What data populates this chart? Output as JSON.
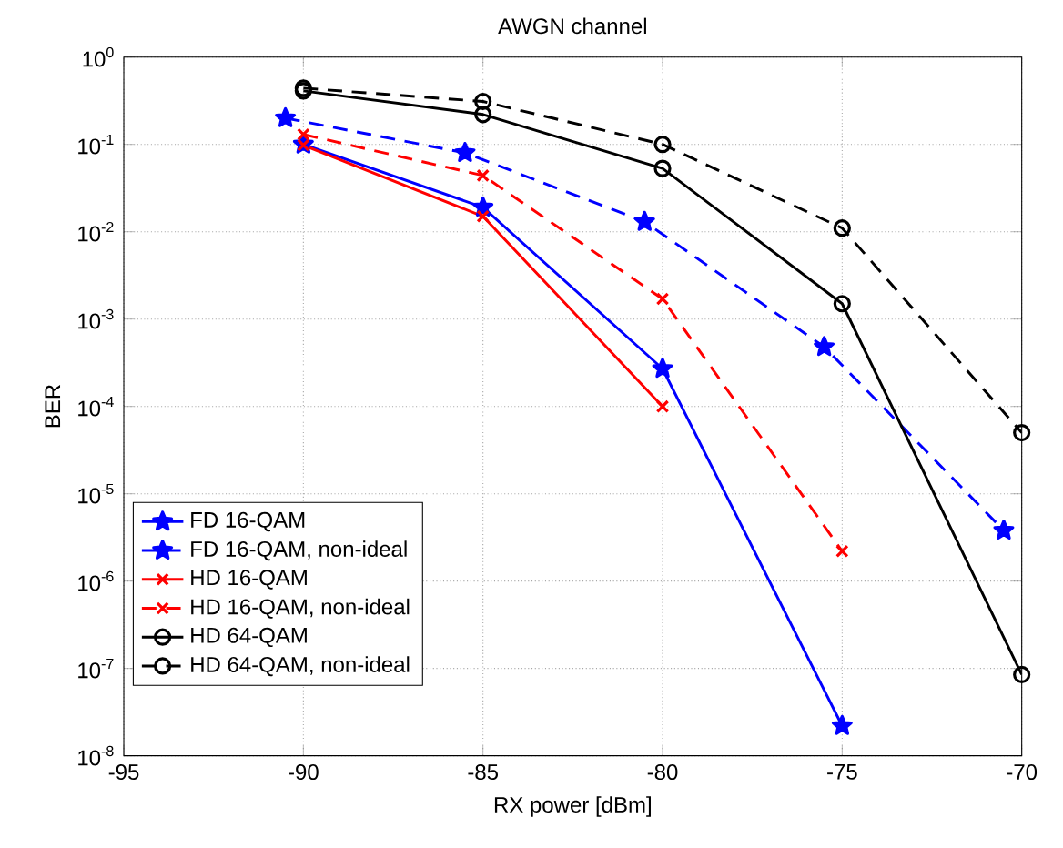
{
  "chart_data": {
    "type": "line",
    "title": "AWGN channel",
    "xlabel": "RX power [dBm]",
    "ylabel": "BER",
    "log": "y",
    "grid": true,
    "legend": "bottom left",
    "xlim": [
      -95,
      -70
    ],
    "xticks": [
      -95,
      -90,
      -85,
      -80,
      -75,
      -70
    ],
    "ylim": [
      1e-08,
      1
    ],
    "yticks": [
      {
        "value": 1e-08,
        "label": "10$^{-8}$"
      },
      {
        "value": 1e-07,
        "label": "10$^{-7}$"
      },
      {
        "value": 1e-06,
        "label": "10$^{-6}$"
      },
      {
        "value": 1e-05,
        "label": "10$^{-5}$"
      },
      {
        "value": 0.0001,
        "label": "10$^{-4}$"
      },
      {
        "value": 0.001,
        "label": "10$^{-3}$"
      },
      {
        "value": 0.01,
        "label": "10$^{-2}$"
      },
      {
        "value": 0.1,
        "label": "10$^{-1}$"
      },
      {
        "value": 1,
        "label": "10$^{0}$"
      }
    ],
    "series": [
      {
        "name": "FD 16-QAM",
        "color": "#0000ff",
        "marker": "star",
        "line_style": "solid",
        "x": [
          -90,
          -85,
          -80,
          -75
        ],
        "values": [
          0.1,
          0.019,
          0.00027,
          2.2e-08
        ]
      },
      {
        "name": "FD 16-QAM, non-ideal",
        "color": "#0000ff",
        "marker": "star",
        "line_style": "dashed",
        "x": [
          -90.5,
          -85.5,
          -80.5,
          -75.5,
          -70.5
        ],
        "values": [
          0.2,
          0.08,
          0.013,
          0.00048,
          3.8e-06
        ]
      },
      {
        "name": "HD 16-QAM",
        "color": "#ff0000",
        "marker": "cross",
        "line_style": "solid",
        "x": [
          -90,
          -85,
          -80
        ],
        "values": [
          0.098,
          0.015,
          0.0001
        ]
      },
      {
        "name": "HD 16-QAM, non-ideal",
        "color": "#ff0000",
        "marker": "cross",
        "line_style": "dashed",
        "x": [
          -90,
          -85,
          -80,
          -75
        ],
        "values": [
          0.13,
          0.044,
          0.0017,
          2.2e-06
        ]
      },
      {
        "name": "HD 64-QAM",
        "color": "#000000",
        "marker": "circle",
        "line_style": "solid",
        "x": [
          -90,
          -85,
          -80,
          -75,
          -70
        ],
        "values": [
          0.41,
          0.22,
          0.053,
          0.0015,
          8.5e-08
        ]
      },
      {
        "name": "HD 64-QAM, non-ideal",
        "color": "#000000",
        "marker": "circle",
        "line_style": "dashed",
        "x": [
          -90,
          -85,
          -80,
          -75,
          -70
        ],
        "values": [
          0.44,
          0.31,
          0.1,
          0.011,
          5e-05
        ]
      }
    ]
  }
}
